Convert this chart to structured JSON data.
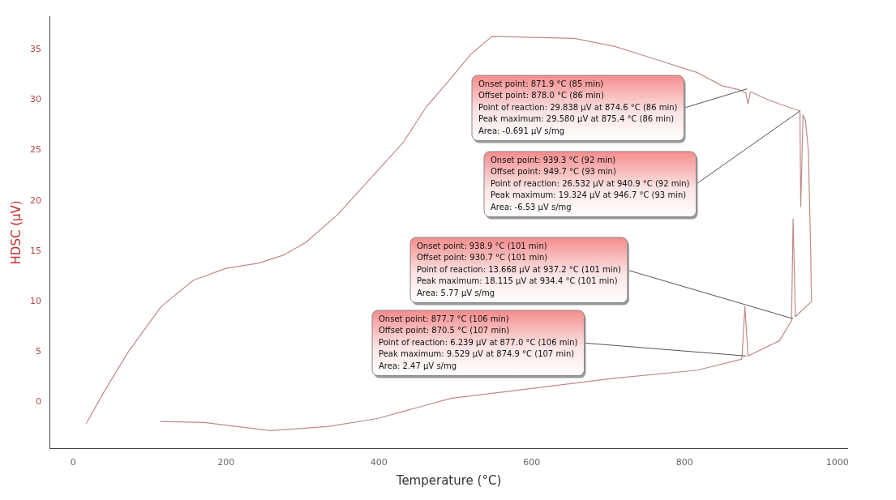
{
  "chart_data": {
    "type": "line",
    "xlabel": "Temperature (°C)",
    "ylabel": "HDSC (µV)",
    "xlim": [
      -30,
      1013
    ],
    "ylim": [
      -4.6,
      38.3
    ],
    "xticks": [
      0,
      200,
      400,
      600,
      800,
      1000
    ],
    "yticks": [
      0,
      5,
      10,
      15,
      20,
      25,
      30,
      35
    ],
    "grid": false,
    "legend": false,
    "marker": "none",
    "line_style": "solid",
    "series": [
      {
        "color": "#c08a8a",
        "x": [
          17,
          40,
          72,
          115,
          157,
          200,
          242,
          275,
          305,
          347,
          390,
          432,
          462,
          487,
          520,
          548,
          602,
          656,
          709,
          763,
          817,
          849,
          872,
          880,
          883,
          886,
          913,
          951,
          952,
          955,
          958,
          962,
          965,
          966,
          945,
          942,
          940,
          924,
          883,
          879,
          875,
          817,
          709,
          602,
          494,
          398,
          333,
          258,
          172,
          114
        ],
        "values": [
          -2.1,
          1.0,
          5.0,
          9.5,
          12.1,
          13.3,
          13.8,
          14.6,
          15.9,
          18.7,
          22.3,
          25.8,
          29.3,
          31.5,
          34.5,
          36.3,
          36.2,
          36.1,
          35.3,
          34.0,
          32.7,
          31.4,
          31.0,
          30.7,
          29.6,
          30.8,
          29.9,
          28.9,
          19.4,
          28.5,
          28.0,
          25.0,
          15.0,
          10.0,
          8.5,
          18.2,
          8.1,
          6.1,
          4.6,
          9.5,
          4.3,
          3.2,
          2.4,
          1.4,
          0.4,
          -1.6,
          -2.4,
          -2.8,
          -2.0,
          -1.9
        ]
      }
    ],
    "annotations": [
      {
        "text": "Onset point: 871.9 °C (85 min)\nOffset point: 878.0 °C (86 min)\nPoint of reaction: 29.838 µV at 874.6 °C (86 min)\nPeak maximum: 29.580 µV at 875.4 °C (86 min)\nArea: -0.691 µV s/mg",
        "x": 882,
        "y": 31.1
      },
      {
        "text": "Onset point: 939.3 °C (92 min)\nOffset point: 949.7 °C (93 min)\nPoint of reaction: 26.532 µV at 940.9 °C (92 min)\nPeak maximum: 19.324 µV at 946.7 °C (93 min)\nArea: -6.53 µV s/mg",
        "x": 951,
        "y": 28.9
      },
      {
        "text": "Onset point: 938.9 °C (101 min)\nOffset point: 930.7 °C (101 min)\nPoint of reaction: 13.668 µV at 937.2 °C (101 min)\nPeak maximum: 18.115 µV at 934.4 °C (101 min)\nArea: 5.77 µV s/mg",
        "x": 942,
        "y": 8.3
      },
      {
        "text": "Onset point: 877.7 °C (106 min)\nOffset point: 870.5 °C (107 min)\nPoint of reaction: 6.239 µV at 877.0 °C (106 min)\nPeak maximum: 9.529 µV at 874.9 °C (107 min)\nArea: 2.47 µV s/mg",
        "x": 881,
        "y": 4.6
      }
    ]
  }
}
